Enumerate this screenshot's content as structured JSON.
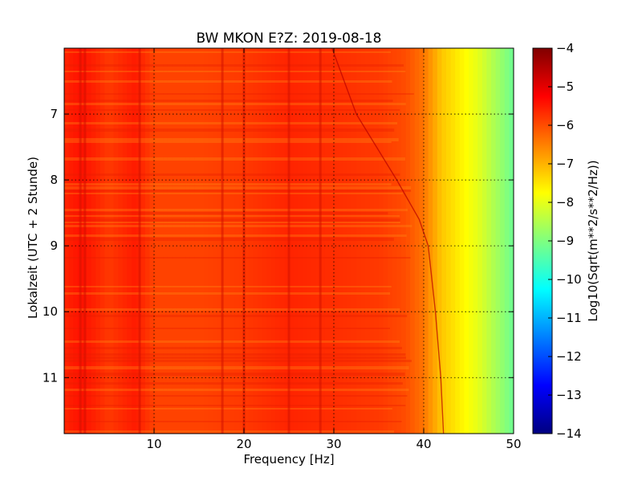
{
  "chart_data": {
    "type": "heatmap",
    "title": "BW MKON E?Z: 2019-08-18",
    "xlabel": "Frequency [Hz]",
    "ylabel": "Lokalzeit (UTC + 2 Stunde)",
    "xlim": [
      0,
      50
    ],
    "ylim": [
      6.0,
      11.85
    ],
    "y_inverted": true,
    "xticks": [
      10,
      20,
      30,
      40,
      50
    ],
    "xtick_labels": [
      "10",
      "20",
      "30",
      "40",
      "50"
    ],
    "yticks": [
      7,
      8,
      9,
      10,
      11
    ],
    "ytick_labels": [
      "7",
      "8",
      "9",
      "10",
      "11"
    ],
    "grid": true,
    "colormap": "jet",
    "colorbar": {
      "label": "Log10(Sqrt(m**2/s**2/Hz))",
      "range": [
        -14,
        -4
      ],
      "ticks": [
        -4,
        -5,
        -6,
        -7,
        -8,
        -9,
        -10,
        -11,
        -12,
        -13,
        -14
      ],
      "tick_labels": [
        "−4",
        "−5",
        "−6",
        "−7",
        "−8",
        "−9",
        "−10",
        "−11",
        "−12",
        "−13",
        "−14"
      ]
    },
    "frequency_profile": {
      "x": [
        0,
        2,
        5,
        8,
        10,
        15,
        20,
        25,
        30,
        35,
        38,
        40,
        42,
        44,
        46,
        48,
        50
      ],
      "values": [
        -5.6,
        -5.4,
        -5.8,
        -5.5,
        -5.9,
        -5.9,
        -5.8,
        -5.6,
        -5.7,
        -5.8,
        -6.0,
        -6.4,
        -7.2,
        -7.6,
        -8.0,
        -8.6,
        -9.2
      ]
    },
    "dominant_lines_hz": [
      1.8,
      2.3,
      8.4,
      17.6,
      20.0,
      25.0,
      28.5
    ],
    "drifting_line": {
      "time": [
        6.0,
        7.0,
        8.0,
        8.6,
        9.0,
        10.0,
        11.0,
        11.85
      ],
      "frequency_hz": [
        29.8,
        32.5,
        37.0,
        39.5,
        40.5,
        41.3,
        41.9,
        42.2
      ]
    }
  }
}
